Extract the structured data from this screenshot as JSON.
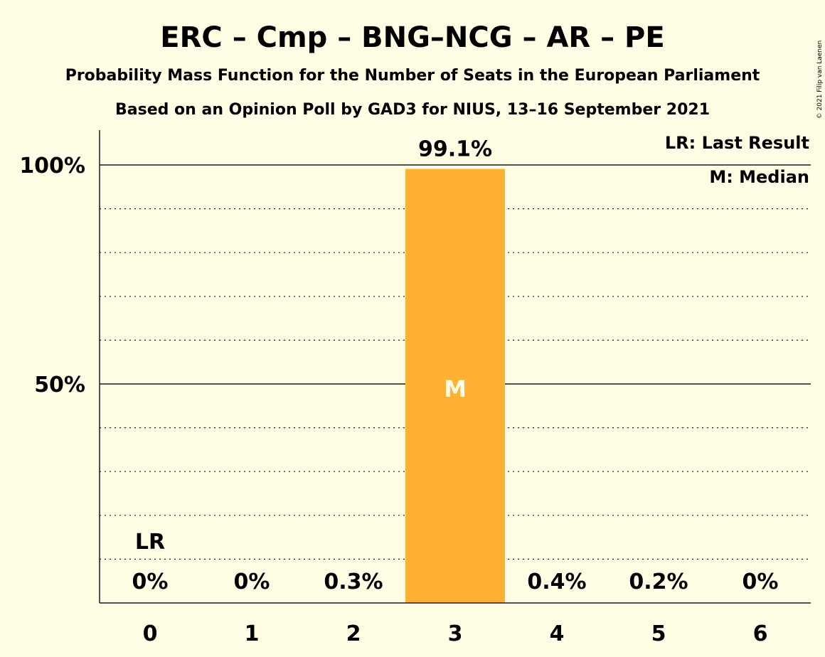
{
  "chart_data": {
    "type": "bar",
    "title": "ERC – Cmp – BNG–NCG – AR – PE",
    "subtitle_1": "Probability Mass Function for the Number of Seats in the European Parliament",
    "subtitle_2": "Based on an Opinion Poll by GAD3 for NIUS, 13–16 September 2021",
    "categories": [
      "0",
      "1",
      "2",
      "3",
      "4",
      "5",
      "6"
    ],
    "values": [
      0,
      0,
      0.3,
      99.1,
      0.4,
      0.2,
      0
    ],
    "data_labels": [
      "0%",
      "0%",
      "0.3%",
      "99.1%",
      "0.4%",
      "0.2%",
      "0%"
    ],
    "ylim": [
      0,
      100
    ],
    "yticks": [
      {
        "value": 50,
        "label": "50%"
      },
      {
        "value": 100,
        "label": "100%"
      }
    ],
    "gridlines_dotted_every": 10,
    "last_result_category": "0",
    "last_result_marker": "LR",
    "median_category": "3",
    "median_marker": "M",
    "legend": {
      "placement": "top-right",
      "lr": "LR: Last Result",
      "m": "M: Median"
    },
    "bar_color": "#FFB133",
    "background_color": "#FFFDE4",
    "copyright": "© 2021 Filip van Laenen"
  }
}
